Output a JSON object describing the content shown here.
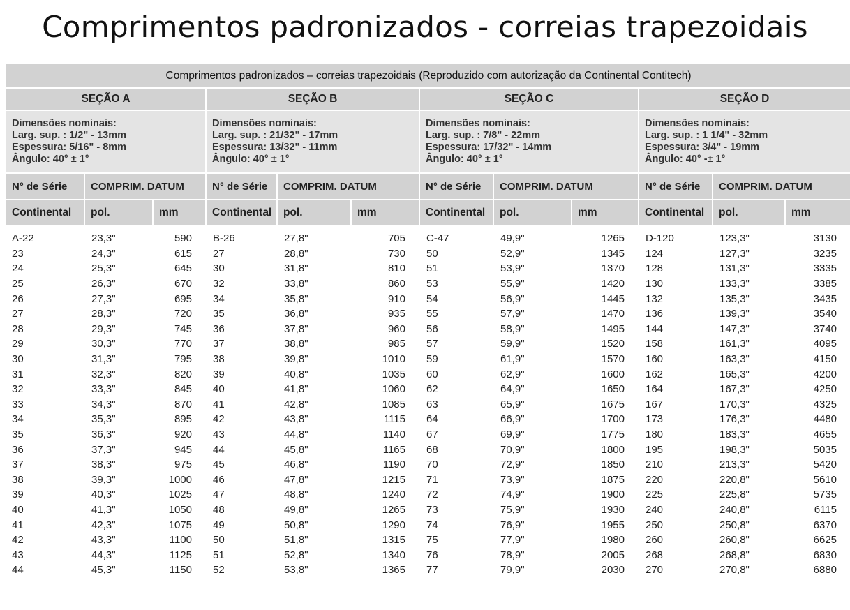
{
  "page": {
    "title": "Comprimentos padronizados - correias trapezoidais"
  },
  "table": {
    "caption": "Comprimentos padronizados – correias trapezoidais (Reproduzido com autorização da Continental Contitech)",
    "sections": [
      {
        "title": "SEÇÃO A",
        "dims": [
          "Dimensões nominais:",
          "Larg. sup. : 1/2\" - 13mm",
          "Espessura: 5/16\" - 8mm",
          "Ângulo: 40° ± 1°"
        ],
        "head_serie": "N° de Série",
        "head_comprim": "COMPRIM. DATUM",
        "head_continental": "Continental",
        "head_pol": "pol.",
        "head_mm": "mm"
      },
      {
        "title": "SEÇÃO B",
        "dims": [
          "Dimensões nominais:",
          "Larg. sup. : 21/32\" - 17mm",
          "Espessura: 13/32\" - 11mm",
          "Ângulo: 40° ± 1°"
        ],
        "head_serie": "N° de Série",
        "head_comprim": "COMPRIM. DATUM",
        "head_continental": "Continental",
        "head_pol": "pol.",
        "head_mm": "mm"
      },
      {
        "title": "SEÇÃO C",
        "dims": [
          "Dimensões nominais:",
          "Larg. sup. : 7/8\" - 22mm",
          "Espessura: 17/32\" - 14mm",
          "Ângulo: 40° ± 1°"
        ],
        "head_serie": "N° de Série",
        "head_comprim": "COMPRIM. DATUM",
        "head_continental": "Continental",
        "head_pol": "pol.",
        "head_mm": "mm"
      },
      {
        "title": "SEÇÃO D",
        "dims": [
          "Dimensões nominais:",
          "Larg. sup. : 1 1/4\" - 32mm",
          "Espessura: 3/4\" - 19mm",
          "Ângulo: 40° -± 1°"
        ],
        "head_serie": "N° de Série",
        "head_comprim": "COMPRIM. DATUM",
        "head_continental": "Continental",
        "head_pol": "pol.",
        "head_mm": "mm"
      }
    ],
    "rows": [
      [
        "A-22",
        "23,3\"",
        "590",
        "B-26",
        "27,8\"",
        "705",
        "C-47",
        "49,9\"",
        "1265",
        "D-120",
        "123,3\"",
        "3130"
      ],
      [
        "23",
        "24,3\"",
        "615",
        "27",
        "28,8\"",
        "730",
        "50",
        "52,9\"",
        "1345",
        "124",
        "127,3\"",
        "3235"
      ],
      [
        "24",
        "25,3\"",
        "645",
        "30",
        "31,8\"",
        "810",
        "51",
        "53,9\"",
        "1370",
        "128",
        "131,3\"",
        "3335"
      ],
      [
        "25",
        "26,3\"",
        "670",
        "32",
        "33,8\"",
        "860",
        "53",
        "55,9\"",
        "1420",
        "130",
        "133,3\"",
        "3385"
      ],
      [
        "26",
        "27,3\"",
        "695",
        "34",
        "35,8\"",
        "910",
        "54",
        "56,9\"",
        "1445",
        "132",
        "135,3\"",
        "3435"
      ],
      [
        "27",
        "28,3\"",
        "720",
        "35",
        "36,8\"",
        "935",
        "55",
        "57,9\"",
        "1470",
        "136",
        "139,3\"",
        "3540"
      ],
      [
        "28",
        "29,3\"",
        "745",
        "36",
        "37,8\"",
        "960",
        "56",
        "58,9\"",
        "1495",
        "144",
        "147,3\"",
        "3740"
      ],
      [
        "29",
        "30,3\"",
        "770",
        "37",
        "38,8\"",
        "985",
        "57",
        "59,9\"",
        "1520",
        "158",
        "161,3\"",
        "4095"
      ],
      [
        "30",
        "31,3\"",
        "795",
        "38",
        "39,8\"",
        "1010",
        "59",
        "61,9\"",
        "1570",
        "160",
        "163,3\"",
        "4150"
      ],
      [
        "31",
        "32,3\"",
        "820",
        "39",
        "40,8\"",
        "1035",
        "60",
        "62,9\"",
        "1600",
        "162",
        "165,3\"",
        "4200"
      ],
      [
        "32",
        "33,3\"",
        "845",
        "40",
        "41,8\"",
        "1060",
        "62",
        "64,9\"",
        "1650",
        "164",
        "167,3\"",
        "4250"
      ],
      [
        "33",
        "34,3\"",
        "870",
        "41",
        "42,8\"",
        "1085",
        "63",
        "65,9\"",
        "1675",
        "167",
        "170,3\"",
        "4325"
      ],
      [
        "34",
        "35,3\"",
        "895",
        "42",
        "43,8\"",
        "1115",
        "64",
        "66,9\"",
        "1700",
        "173",
        "176,3\"",
        "4480"
      ],
      [
        "35",
        "36,3\"",
        "920",
        "43",
        "44,8\"",
        "1140",
        "67",
        "69,9\"",
        "1775",
        "180",
        "183,3\"",
        "4655"
      ],
      [
        "36",
        "37,3\"",
        "945",
        "44",
        "45,8\"",
        "1165",
        "68",
        "70,9\"",
        "1800",
        "195",
        "198,3\"",
        "5035"
      ],
      [
        "37",
        "38,3\"",
        "975",
        "45",
        "46,8\"",
        "1190",
        "70",
        "72,9\"",
        "1850",
        "210",
        "213,3\"",
        "5420"
      ],
      [
        "38",
        "39,3\"",
        "1000",
        "46",
        "47,8\"",
        "1215",
        "71",
        "73,9\"",
        "1875",
        "220",
        "220,8\"",
        "5610"
      ],
      [
        "39",
        "40,3\"",
        "1025",
        "47",
        "48,8\"",
        "1240",
        "72",
        "74,9\"",
        "1900",
        "225",
        "225,8\"",
        "5735"
      ],
      [
        "40",
        "41,3\"",
        "1050",
        "48",
        "49,8\"",
        "1265",
        "73",
        "75,9\"",
        "1930",
        "240",
        "240,8\"",
        "6115"
      ],
      [
        "41",
        "42,3\"",
        "1075",
        "49",
        "50,8\"",
        "1290",
        "74",
        "76,9\"",
        "1955",
        "250",
        "250,8\"",
        "6370"
      ],
      [
        "42",
        "43,3\"",
        "1100",
        "50",
        "51,8\"",
        "1315",
        "75",
        "77,9\"",
        "1980",
        "260",
        "260,8\"",
        "6625"
      ],
      [
        "43",
        "44,3\"",
        "1125",
        "51",
        "52,8\"",
        "1340",
        "76",
        "78,9\"",
        "2005",
        "268",
        "268,8\"",
        "6830"
      ],
      [
        "44",
        "45,3\"",
        "1150",
        "52",
        "53,8\"",
        "1365",
        "77",
        "79,9\"",
        "2030",
        "270",
        "270,8\"",
        "6880"
      ]
    ]
  }
}
